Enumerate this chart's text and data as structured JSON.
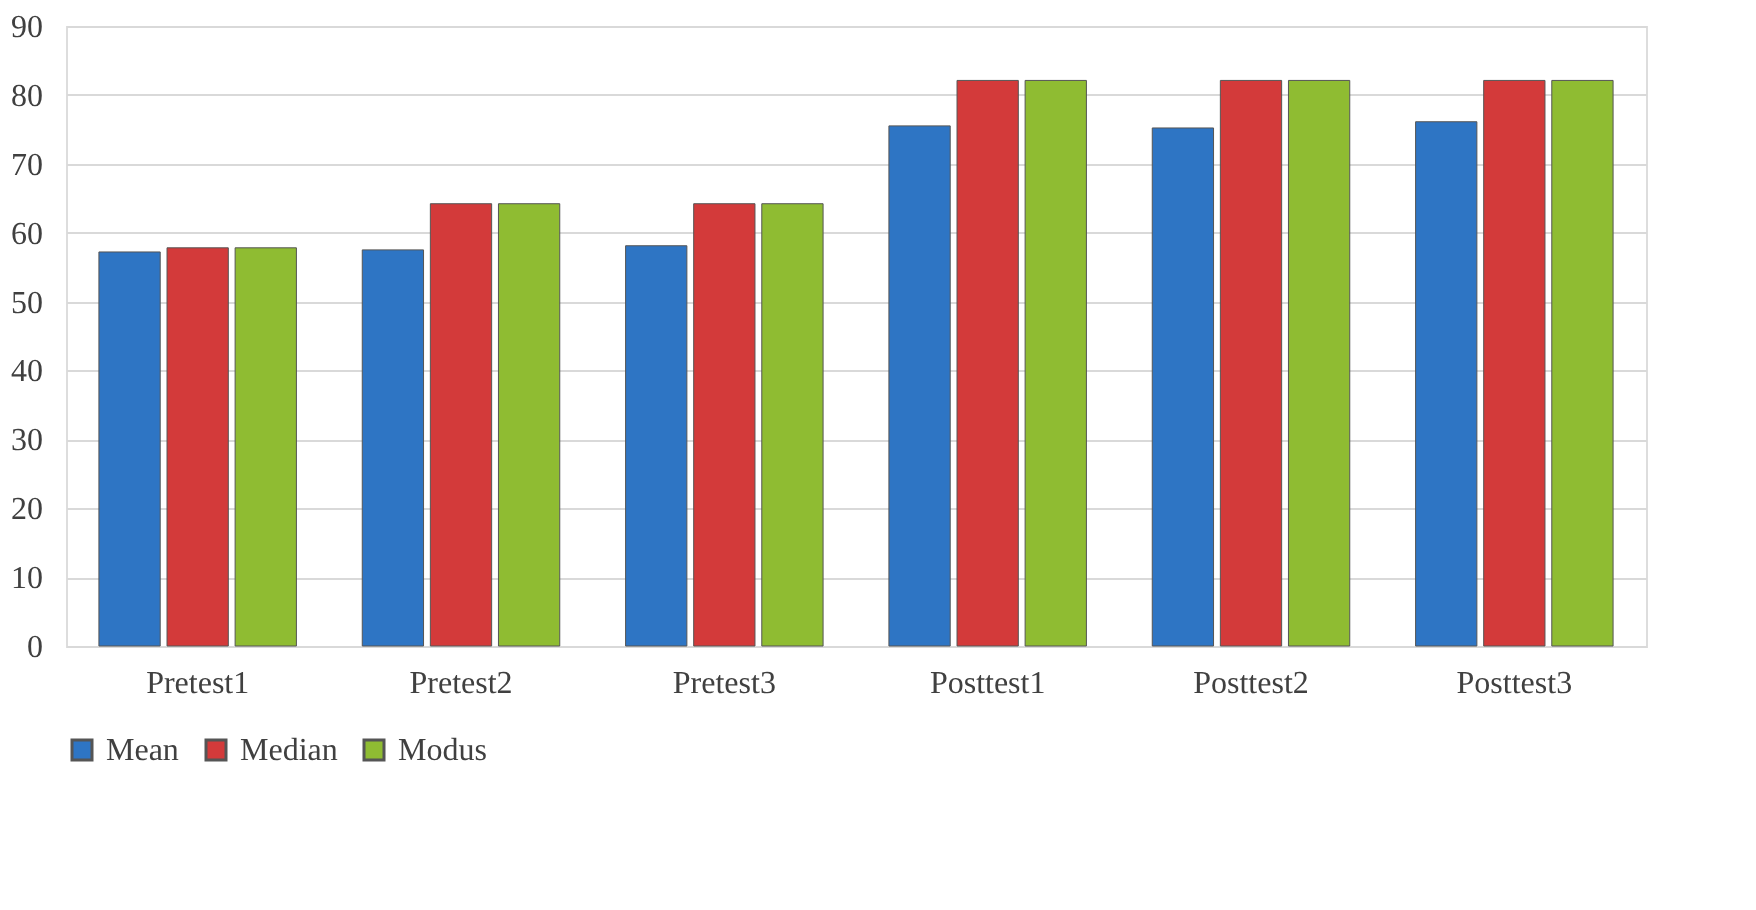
{
  "chart_data": {
    "type": "bar",
    "categories": [
      "Pretest1",
      "Pretest2",
      "Pretest3",
      "Posttest1",
      "Posttest2",
      "Posttest3"
    ],
    "series": [
      {
        "name": "Mean",
        "color": "#2e75c4",
        "values": [
          57.2,
          57.5,
          58.1,
          75.5,
          75.2,
          76.1
        ]
      },
      {
        "name": "Median",
        "color": "#d33a3a",
        "values": [
          57.8,
          64.2,
          64.2,
          82.1,
          82.1,
          82.1
        ]
      },
      {
        "name": "Modus",
        "color": "#8fbc32",
        "values": [
          57.8,
          64.2,
          64.2,
          82.1,
          82.1,
          82.1
        ]
      }
    ],
    "ylim": [
      0,
      90
    ],
    "yticks": [
      0,
      10,
      20,
      30,
      40,
      50,
      60,
      70,
      80,
      90
    ],
    "grid": "y",
    "legend": "bottom"
  }
}
